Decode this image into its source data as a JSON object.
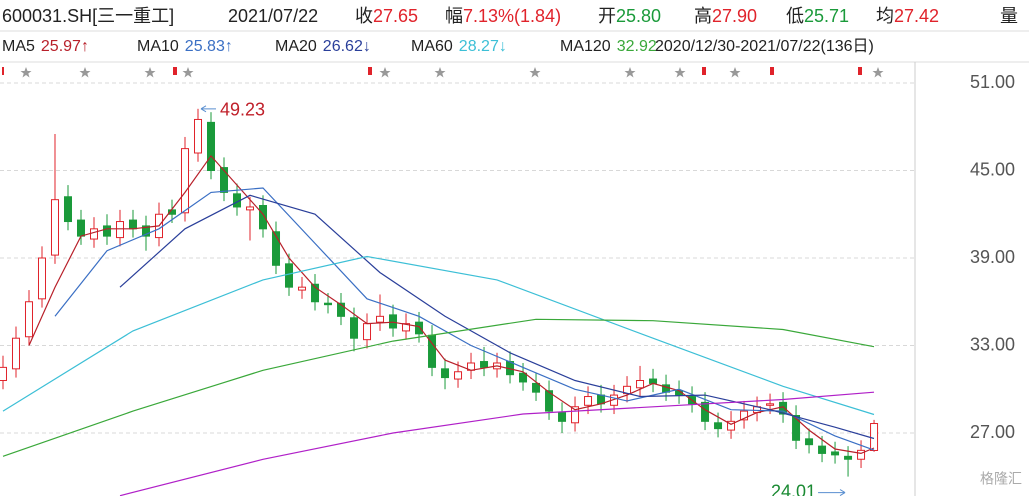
{
  "chart_data": {
    "type": "candlestick",
    "title": "600031.SH[三一重工]",
    "date": "2021/07/22",
    "quote": [
      {
        "label": "收",
        "value": "27.65",
        "color": "#e0232b"
      },
      {
        "label": "幅",
        "value": "7.13%(1.84)",
        "color": "#e0232b"
      },
      {
        "label": "开",
        "value": "25.80",
        "color": "#1a9a3a"
      },
      {
        "label": "高",
        "value": "27.90",
        "color": "#e0232b"
      },
      {
        "label": "低",
        "value": "25.71",
        "color": "#1a9a3a"
      },
      {
        "label": "均",
        "value": "27.42",
        "color": "#e0232b"
      },
      {
        "label": "量"
      }
    ],
    "range": "2020/12/30-2021/07/22(136日)",
    "watermark": "格隆汇",
    "up_color": "#e0232b",
    "down_color": "#1a9a3a",
    "open": [
      30.6,
      31.4,
      33.6,
      36.2,
      39.2,
      43.2,
      41.6,
      40.3,
      41.2,
      40.4,
      41.6,
      41.2,
      40.4,
      42.3,
      42.1,
      46.2,
      48.3,
      45.2,
      43.4,
      42.3,
      42.6,
      40.8,
      38.6,
      36.8,
      37.2,
      35.9,
      35.9,
      34.9,
      33.4,
      34.6,
      35.1,
      34.0,
      34.6,
      33.7,
      31.4,
      30.7,
      31.3,
      31.9,
      31.4,
      31.9,
      31.1,
      30.4,
      29.9,
      28.4,
      27.7,
      28.9,
      29.6,
      28.9,
      29.7,
      30.1,
      30.7,
      30.3,
      29.9,
      29.5,
      29.1,
      27.7,
      27.2,
      27.9,
      28.4,
      28.9,
      29.1,
      28.2,
      26.6,
      26.1,
      25.7,
      25.4,
      25.2,
      25.8
    ],
    "high": [
      32.3,
      34.3,
      36.8,
      39.8,
      47.5,
      44.0,
      42.3,
      41.8,
      42.0,
      42.3,
      42.3,
      41.9,
      42.8,
      43.0,
      47.3,
      49.23,
      49.0,
      45.9,
      44.1,
      43.2,
      43.3,
      41.5,
      39.3,
      37.7,
      37.9,
      36.6,
      36.6,
      35.6,
      35.2,
      36.5,
      35.8,
      35.2,
      35.3,
      34.4,
      32.1,
      31.9,
      32.5,
      32.9,
      32.5,
      32.6,
      31.8,
      31.1,
      30.6,
      29.1,
      29.5,
      30.2,
      30.3,
      30.3,
      30.9,
      31.6,
      31.4,
      31.0,
      30.6,
      30.2,
      29.8,
      28.4,
      28.5,
      29.2,
      29.5,
      29.7,
      29.8,
      28.9,
      27.3,
      26.8,
      26.4,
      26.1,
      26.5,
      27.9
    ],
    "low": [
      30.0,
      30.8,
      33.0,
      35.6,
      38.6,
      40.9,
      39.9,
      39.7,
      39.9,
      39.8,
      40.4,
      39.5,
      39.8,
      41.4,
      41.5,
      45.6,
      44.4,
      42.9,
      41.9,
      40.2,
      40.4,
      37.9,
      36.4,
      36.2,
      35.4,
      35.2,
      34.4,
      32.6,
      32.8,
      34.0,
      33.6,
      33.4,
      33.2,
      30.9,
      30.0,
      30.1,
      30.7,
      30.9,
      30.8,
      30.4,
      29.9,
      29.2,
      27.9,
      27.0,
      27.1,
      28.3,
      28.4,
      28.3,
      29.1,
      29.5,
      29.8,
      29.2,
      29.0,
      28.4,
      27.2,
      26.7,
      26.6,
      27.3,
      27.8,
      28.3,
      27.7,
      25.9,
      25.6,
      25.0,
      24.9,
      24.01,
      24.6,
      25.71
    ],
    "close": [
      31.5,
      33.5,
      36,
      39,
      43,
      41.5,
      40.5,
      41,
      40.5,
      41.5,
      41,
      40.5,
      42,
      42,
      46.5,
      48.5,
      45,
      43.5,
      42.5,
      42.5,
      41,
      38.5,
      37,
      37,
      36,
      35.8,
      35,
      33.5,
      34.5,
      35,
      34.2,
      34.5,
      33.8,
      31.5,
      30.8,
      31.2,
      31.8,
      31.5,
      31.8,
      31,
      30.5,
      29.8,
      28.5,
      27.8,
      28.8,
      29.5,
      29,
      29.6,
      30.2,
      30.6,
      30.4,
      29.8,
      29.6,
      29,
      27.8,
      27.3,
      27.8,
      28.5,
      28.8,
      29,
      28.3,
      26.5,
      26.2,
      25.6,
      25.5,
      25.2,
      25.81,
      27.65
    ],
    "series": [
      {
        "name": "MA5",
        "legend_value": "25.97↑",
        "color": "#b8202a",
        "x": [
          2,
          4,
          6,
          8,
          10,
          12,
          14,
          16,
          18,
          20,
          22,
          24,
          26,
          28,
          30,
          32,
          34,
          36,
          38,
          40,
          42,
          44,
          46,
          48,
          50,
          52,
          54,
          56,
          58,
          60,
          62,
          64,
          66,
          67
        ],
        "values": [
          33,
          37,
          40.5,
          41,
          41,
          41.2,
          43.5,
          46,
          44,
          42,
          39,
          37,
          35.8,
          34.5,
          34.6,
          34.3,
          32,
          31.3,
          31.6,
          31.2,
          29.8,
          28.6,
          29,
          29.6,
          30.4,
          29.9,
          28.6,
          27.6,
          28.4,
          28.8,
          27.2,
          25.9,
          25.6,
          25.97
        ]
      },
      {
        "name": "MA10",
        "legend_value": "25.83↑",
        "color": "#3a6fc4",
        "x": [
          4,
          8,
          12,
          16,
          20,
          24,
          28,
          32,
          36,
          40,
          44,
          48,
          52,
          56,
          60,
          64,
          67
        ],
        "values": [
          35,
          39.5,
          41,
          43.5,
          43.8,
          40,
          36.2,
          35,
          33,
          31.5,
          30,
          29.2,
          30,
          28.6,
          28.5,
          26.8,
          25.83
        ]
      },
      {
        "name": "MA20",
        "legend_value": "26.62↓",
        "color": "#2a3f9a",
        "x": [
          9,
          14,
          19,
          24,
          29,
          34,
          39,
          44,
          49,
          54,
          59,
          64,
          67
        ],
        "values": [
          37,
          41,
          43.3,
          42,
          38,
          35,
          32.5,
          30.6,
          29.5,
          29.6,
          28.6,
          27.4,
          26.62
        ]
      },
      {
        "name": "MA60",
        "legend_value": "28.27↓",
        "color": "#3cbfd6",
        "x": [
          0,
          10,
          20,
          28,
          38,
          50,
          60,
          67
        ],
        "values": [
          28.5,
          34,
          37.5,
          39.1,
          37.5,
          33.5,
          30.2,
          28.27
        ]
      },
      {
        "name": "MA120",
        "legend_value": "32.92",
        "color": "#3aa83a",
        "x": [
          0,
          10,
          20,
          30,
          41,
          50,
          60,
          67
        ],
        "values": [
          25.4,
          28.5,
          31.3,
          33.3,
          34.8,
          34.7,
          34.1,
          32.92
        ]
      },
      {
        "color": "#b020c8",
        "x": [
          9,
          20,
          30,
          40,
          50,
          60,
          67
        ],
        "values": [
          22.7,
          25.2,
          27,
          28.3,
          28.8,
          29.3,
          29.8
        ]
      }
    ],
    "xlim": [
      -0.23,
      70.15
    ],
    "ylim": [
      22.68,
      52.44
    ],
    "yticks": [
      {
        "value": 51,
        "label": "51.00"
      },
      {
        "value": 45,
        "label": "45.00"
      },
      {
        "value": 39,
        "label": "39.00"
      },
      {
        "value": 33,
        "label": "33.00"
      },
      {
        "value": 27,
        "label": "27.00"
      }
    ],
    "grid": true
  }
}
